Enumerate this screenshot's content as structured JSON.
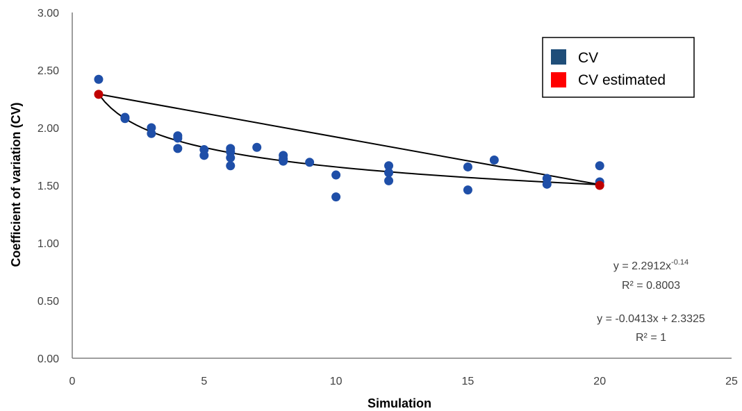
{
  "chart_data": {
    "type": "scatter",
    "xlabel": "Simulation",
    "ylabel": "Coefficient of variation (CV)",
    "xlim": [
      0,
      25
    ],
    "ylim": [
      0,
      3
    ],
    "x_ticks": [
      "0",
      "5",
      "10",
      "15",
      "20",
      "25"
    ],
    "y_ticks": [
      "0.00",
      "0.50",
      "1.00",
      "1.50",
      "2.00",
      "2.50",
      "3.00"
    ],
    "grid": false,
    "legend_position": "top-right",
    "series": [
      {
        "name": "CV",
        "color": "#1f4fa8",
        "legend_color": "#1f4e79",
        "points": [
          [
            1,
            2.42
          ],
          [
            2,
            2.09
          ],
          [
            2,
            2.08
          ],
          [
            3,
            2.0
          ],
          [
            3,
            1.95
          ],
          [
            4,
            1.93
          ],
          [
            4,
            1.91
          ],
          [
            4,
            1.82
          ],
          [
            5,
            1.81
          ],
          [
            5,
            1.76
          ],
          [
            6,
            1.82
          ],
          [
            6,
            1.79
          ],
          [
            6,
            1.74
          ],
          [
            6,
            1.67
          ],
          [
            7,
            1.83
          ],
          [
            8,
            1.76
          ],
          [
            8,
            1.73
          ],
          [
            8,
            1.71
          ],
          [
            9,
            1.7
          ],
          [
            10,
            1.59
          ],
          [
            10,
            1.4
          ],
          [
            12,
            1.67
          ],
          [
            12,
            1.61
          ],
          [
            12,
            1.54
          ],
          [
            15,
            1.66
          ],
          [
            15,
            1.46
          ],
          [
            16,
            1.72
          ],
          [
            18,
            1.56
          ],
          [
            18,
            1.51
          ],
          [
            20,
            1.67
          ],
          [
            20,
            1.53
          ]
        ]
      },
      {
        "name": "CV estimated",
        "color": "#c00000",
        "legend_color": "#ff0000",
        "points": [
          [
            1,
            2.29
          ],
          [
            20,
            1.5
          ]
        ]
      }
    ],
    "trendlines": [
      {
        "type": "power",
        "a": 2.2912,
        "b": -0.14,
        "x_range": [
          1,
          20
        ],
        "equation_base": "y = 2.2912x",
        "equation_exponent": "-0.14",
        "r2_text": "R² = 0.8003"
      },
      {
        "type": "linear",
        "slope": -0.0413,
        "intercept": 2.3325,
        "x_range": [
          1,
          20
        ],
        "equation_text": "y = -0.0413x + 2.3325",
        "r2_text": "R² = 1"
      }
    ]
  }
}
